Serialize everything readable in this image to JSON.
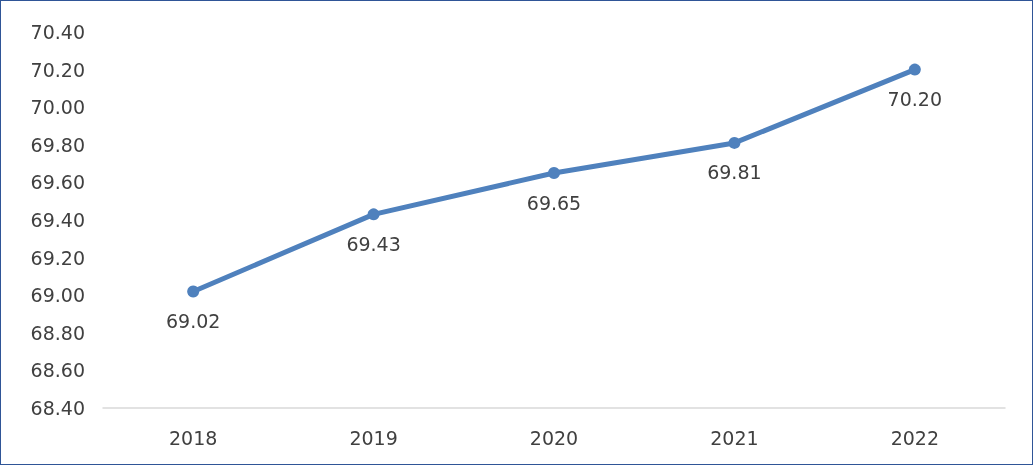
{
  "chart_data": {
    "type": "line",
    "categories": [
      "2018",
      "2019",
      "2020",
      "2021",
      "2022"
    ],
    "series": [
      {
        "color": "#4f81bd",
        "values": [
          69.02,
          69.43,
          69.65,
          69.81,
          70.2
        ],
        "value_labels": [
          "69.02",
          "69.43",
          "69.65",
          "69.81",
          "70.20"
        ]
      }
    ],
    "ylim": [
      68.4,
      70.4
    ],
    "yticks": [
      {
        "value": 68.4,
        "label": "68.40"
      },
      {
        "value": 68.6,
        "label": "68.60"
      },
      {
        "value": 68.8,
        "label": "68.80"
      },
      {
        "value": 69,
        "label": "69.00"
      },
      {
        "value": 69.2,
        "label": "69.20"
      },
      {
        "value": 69.4,
        "label": "69.40"
      },
      {
        "value": 69.6,
        "label": "69.60"
      },
      {
        "value": 69.8,
        "label": "69.80"
      },
      {
        "value": 70,
        "label": "70.00"
      },
      {
        "value": 70.2,
        "label": "70.20"
      },
      {
        "value": 70.4,
        "label": "70.40"
      }
    ],
    "grid": false,
    "marker": "circle",
    "line_style": "solid"
  }
}
